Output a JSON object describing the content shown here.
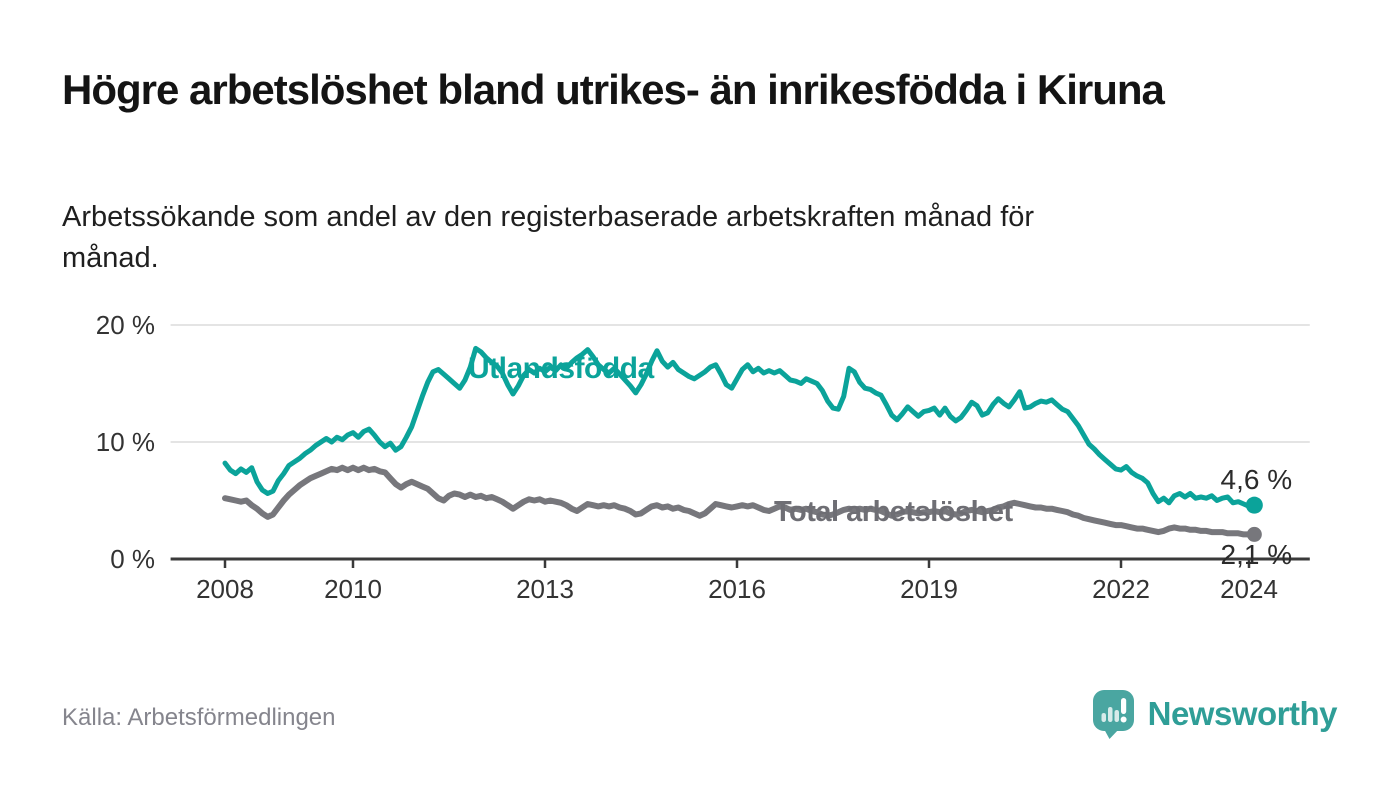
{
  "header": {
    "title": "Högre arbetslöshet bland utrikes- än inrikesfödda i Kiruna",
    "subtitle": "Arbetssökande som andel av den registerbaserade arbetskraften månad för månad."
  },
  "footer": {
    "source": "Källa: Arbetsförmedlingen",
    "brand": "Newsworthy",
    "brand_icon": "speech-bubble-bar-chart-icon"
  },
  "colors": {
    "utlandsfodda_line": "#0ba39a",
    "total_line": "#77777c",
    "axis": "#3a3a3a",
    "grid": "#dcdcdc",
    "value_label": "#2b2b2b",
    "brand_teal": "#2f9e97",
    "brand_bubble": "#4aa6a1"
  },
  "annotations": {
    "utlandsfodda_label": "Utlandsfödda",
    "total_label": "Total arbetslöshet",
    "utlandsfodda_end_value": "4,6 %",
    "total_end_value": "2,1 %"
  },
  "chart_data": {
    "type": "line",
    "title": "Högre arbetslöshet bland utrikes- än inrikesfödda i Kiruna",
    "xlabel": "",
    "ylabel": "",
    "unit": "% av registerbaserad arbetskraft",
    "grid": "horizontal",
    "legend_position": "inline-labels",
    "ylim": [
      0,
      20
    ],
    "xlim": [
      2007.15,
      2024.95
    ],
    "y_ticks": [
      {
        "value": 0,
        "label": "0 %"
      },
      {
        "value": 10,
        "label": "10 %"
      },
      {
        "value": 20,
        "label": "20 %"
      }
    ],
    "x_ticks": [
      {
        "value": 2008,
        "label": "2008"
      },
      {
        "value": 2010,
        "label": "2010"
      },
      {
        "value": 2013,
        "label": "2013"
      },
      {
        "value": 2016,
        "label": "2016"
      },
      {
        "value": 2019,
        "label": "2019"
      },
      {
        "value": 2022,
        "label": "2022"
      },
      {
        "value": 2024,
        "label": "2024"
      }
    ],
    "start_year": 2008,
    "step_months": 1,
    "series": [
      {
        "name": "Utlandsfödda",
        "color": "#0ba39a",
        "line_width": 5,
        "end_label": "4,6 %",
        "end_value": 4.6,
        "values": [
          8.2,
          7.6,
          7.3,
          7.7,
          7.4,
          7.8,
          6.6,
          5.9,
          5.6,
          5.8,
          6.7,
          7.3,
          8.0,
          8.3,
          8.6,
          9.0,
          9.3,
          9.7,
          10.0,
          10.3,
          10.0,
          10.4,
          10.2,
          10.6,
          10.8,
          10.4,
          10.9,
          11.1,
          10.6,
          10.0,
          9.6,
          9.9,
          9.3,
          9.6,
          10.4,
          11.3,
          12.6,
          13.9,
          15.1,
          16.0,
          16.2,
          15.8,
          15.4,
          15.0,
          14.6,
          15.3,
          16.4,
          18.0,
          17.7,
          17.2,
          16.8,
          16.5,
          15.9,
          14.9,
          14.1,
          14.8,
          15.7,
          16.2,
          15.9,
          16.3,
          16.0,
          16.4,
          16.1,
          16.6,
          16.3,
          16.8,
          17.2,
          17.5,
          17.9,
          17.3,
          16.6,
          16.2,
          15.9,
          16.3,
          15.8,
          15.3,
          14.8,
          14.2,
          14.9,
          15.8,
          16.9,
          17.8,
          16.9,
          16.4,
          16.8,
          16.2,
          15.9,
          15.6,
          15.4,
          15.7,
          16.0,
          16.4,
          16.6,
          15.8,
          14.9,
          14.6,
          15.4,
          16.2,
          16.6,
          16.0,
          16.3,
          15.9,
          16.1,
          15.9,
          16.1,
          15.7,
          15.3,
          15.2,
          15.0,
          15.4,
          15.2,
          15.0,
          14.4,
          13.5,
          12.9,
          12.8,
          13.9,
          16.3,
          16.0,
          15.1,
          14.6,
          14.5,
          14.2,
          14.0,
          13.2,
          12.3,
          11.9,
          12.4,
          13.0,
          12.6,
          12.2,
          12.6,
          12.7,
          12.9,
          12.3,
          12.9,
          12.2,
          11.8,
          12.1,
          12.7,
          13.4,
          13.1,
          12.3,
          12.5,
          13.2,
          13.7,
          13.3,
          13.0,
          13.6,
          14.3,
          12.9,
          13.0,
          13.3,
          13.5,
          13.4,
          13.6,
          13.2,
          12.8,
          12.6,
          12.0,
          11.4,
          10.6,
          9.8,
          9.4,
          8.9,
          8.5,
          8.1,
          7.7,
          7.6,
          7.9,
          7.4,
          7.1,
          6.9,
          6.5,
          5.6,
          4.9,
          5.2,
          4.8,
          5.4,
          5.6,
          5.3,
          5.6,
          5.2,
          5.3,
          5.2,
          5.4,
          5.0,
          5.2,
          5.3,
          4.8,
          4.9,
          4.7,
          4.5,
          4.6
        ]
      },
      {
        "name": "Total arbetslöshet",
        "color": "#77777c",
        "line_width": 6,
        "end_label": "2,1 %",
        "end_value": 2.1,
        "values": [
          5.2,
          5.1,
          5.0,
          4.9,
          5.0,
          4.6,
          4.3,
          3.9,
          3.6,
          3.8,
          4.4,
          5.0,
          5.5,
          5.9,
          6.3,
          6.6,
          6.9,
          7.1,
          7.3,
          7.5,
          7.7,
          7.6,
          7.8,
          7.6,
          7.8,
          7.6,
          7.8,
          7.6,
          7.7,
          7.5,
          7.4,
          6.9,
          6.4,
          6.1,
          6.4,
          6.6,
          6.4,
          6.2,
          6.0,
          5.6,
          5.2,
          5.0,
          5.4,
          5.6,
          5.5,
          5.3,
          5.5,
          5.3,
          5.4,
          5.2,
          5.3,
          5.1,
          4.9,
          4.6,
          4.3,
          4.6,
          4.9,
          5.1,
          5.0,
          5.1,
          4.9,
          5.0,
          4.9,
          4.8,
          4.6,
          4.3,
          4.1,
          4.4,
          4.7,
          4.6,
          4.5,
          4.6,
          4.5,
          4.6,
          4.4,
          4.3,
          4.1,
          3.8,
          3.9,
          4.2,
          4.5,
          4.6,
          4.4,
          4.5,
          4.3,
          4.4,
          4.2,
          4.1,
          3.9,
          3.7,
          3.9,
          4.3,
          4.7,
          4.6,
          4.5,
          4.4,
          4.5,
          4.6,
          4.5,
          4.6,
          4.4,
          4.2,
          4.1,
          4.3,
          4.5,
          4.4,
          4.2,
          4.3,
          4.2,
          4.3,
          4.1,
          4.0,
          3.8,
          3.7,
          3.8,
          4.0,
          4.2,
          4.3,
          4.2,
          4.3,
          4.2,
          4.3,
          4.2,
          4.1,
          3.9,
          3.7,
          3.8,
          4.0,
          4.1,
          4.0,
          3.9,
          4.0,
          4.0,
          4.1,
          4.0,
          4.1,
          3.9,
          3.8,
          3.9,
          4.1,
          4.2,
          4.1,
          4.0,
          4.1,
          4.2,
          4.4,
          4.5,
          4.7,
          4.8,
          4.7,
          4.6,
          4.5,
          4.4,
          4.4,
          4.3,
          4.3,
          4.2,
          4.1,
          4.0,
          3.8,
          3.7,
          3.5,
          3.4,
          3.3,
          3.2,
          3.1,
          3.0,
          2.9,
          2.9,
          2.8,
          2.7,
          2.6,
          2.6,
          2.5,
          2.4,
          2.3,
          2.4,
          2.6,
          2.7,
          2.6,
          2.6,
          2.5,
          2.5,
          2.4,
          2.4,
          2.3,
          2.3,
          2.3,
          2.2,
          2.2,
          2.2,
          2.1,
          2.1,
          2.1
        ]
      }
    ]
  }
}
